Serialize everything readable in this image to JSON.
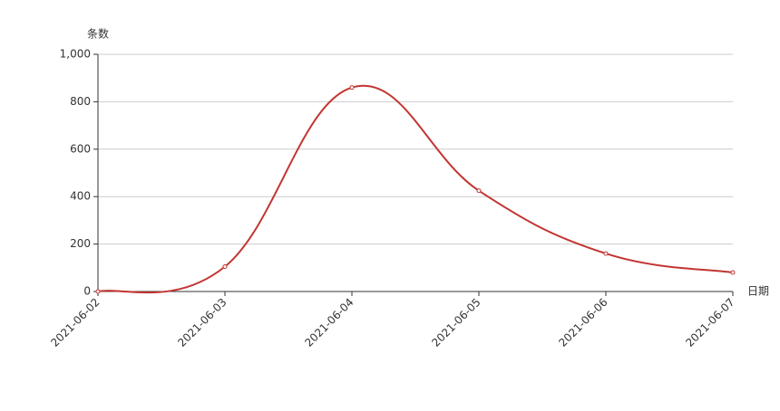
{
  "chart_data": {
    "type": "line",
    "smooth": true,
    "y_axis_label": "条数",
    "x_axis_label": "日期",
    "categories": [
      "2021-06-02",
      "2021-06-03",
      "2021-06-04",
      "2021-06-05",
      "2021-06-06",
      "2021-06-07"
    ],
    "values": [
      0,
      105,
      860,
      425,
      160,
      80
    ],
    "color": "#c23531",
    "ylim": [
      0,
      1000
    ],
    "yticks": [
      0,
      200,
      400,
      600,
      800,
      {
        "value": 1000,
        "label": "1,000"
      }
    ],
    "grid": true
  }
}
